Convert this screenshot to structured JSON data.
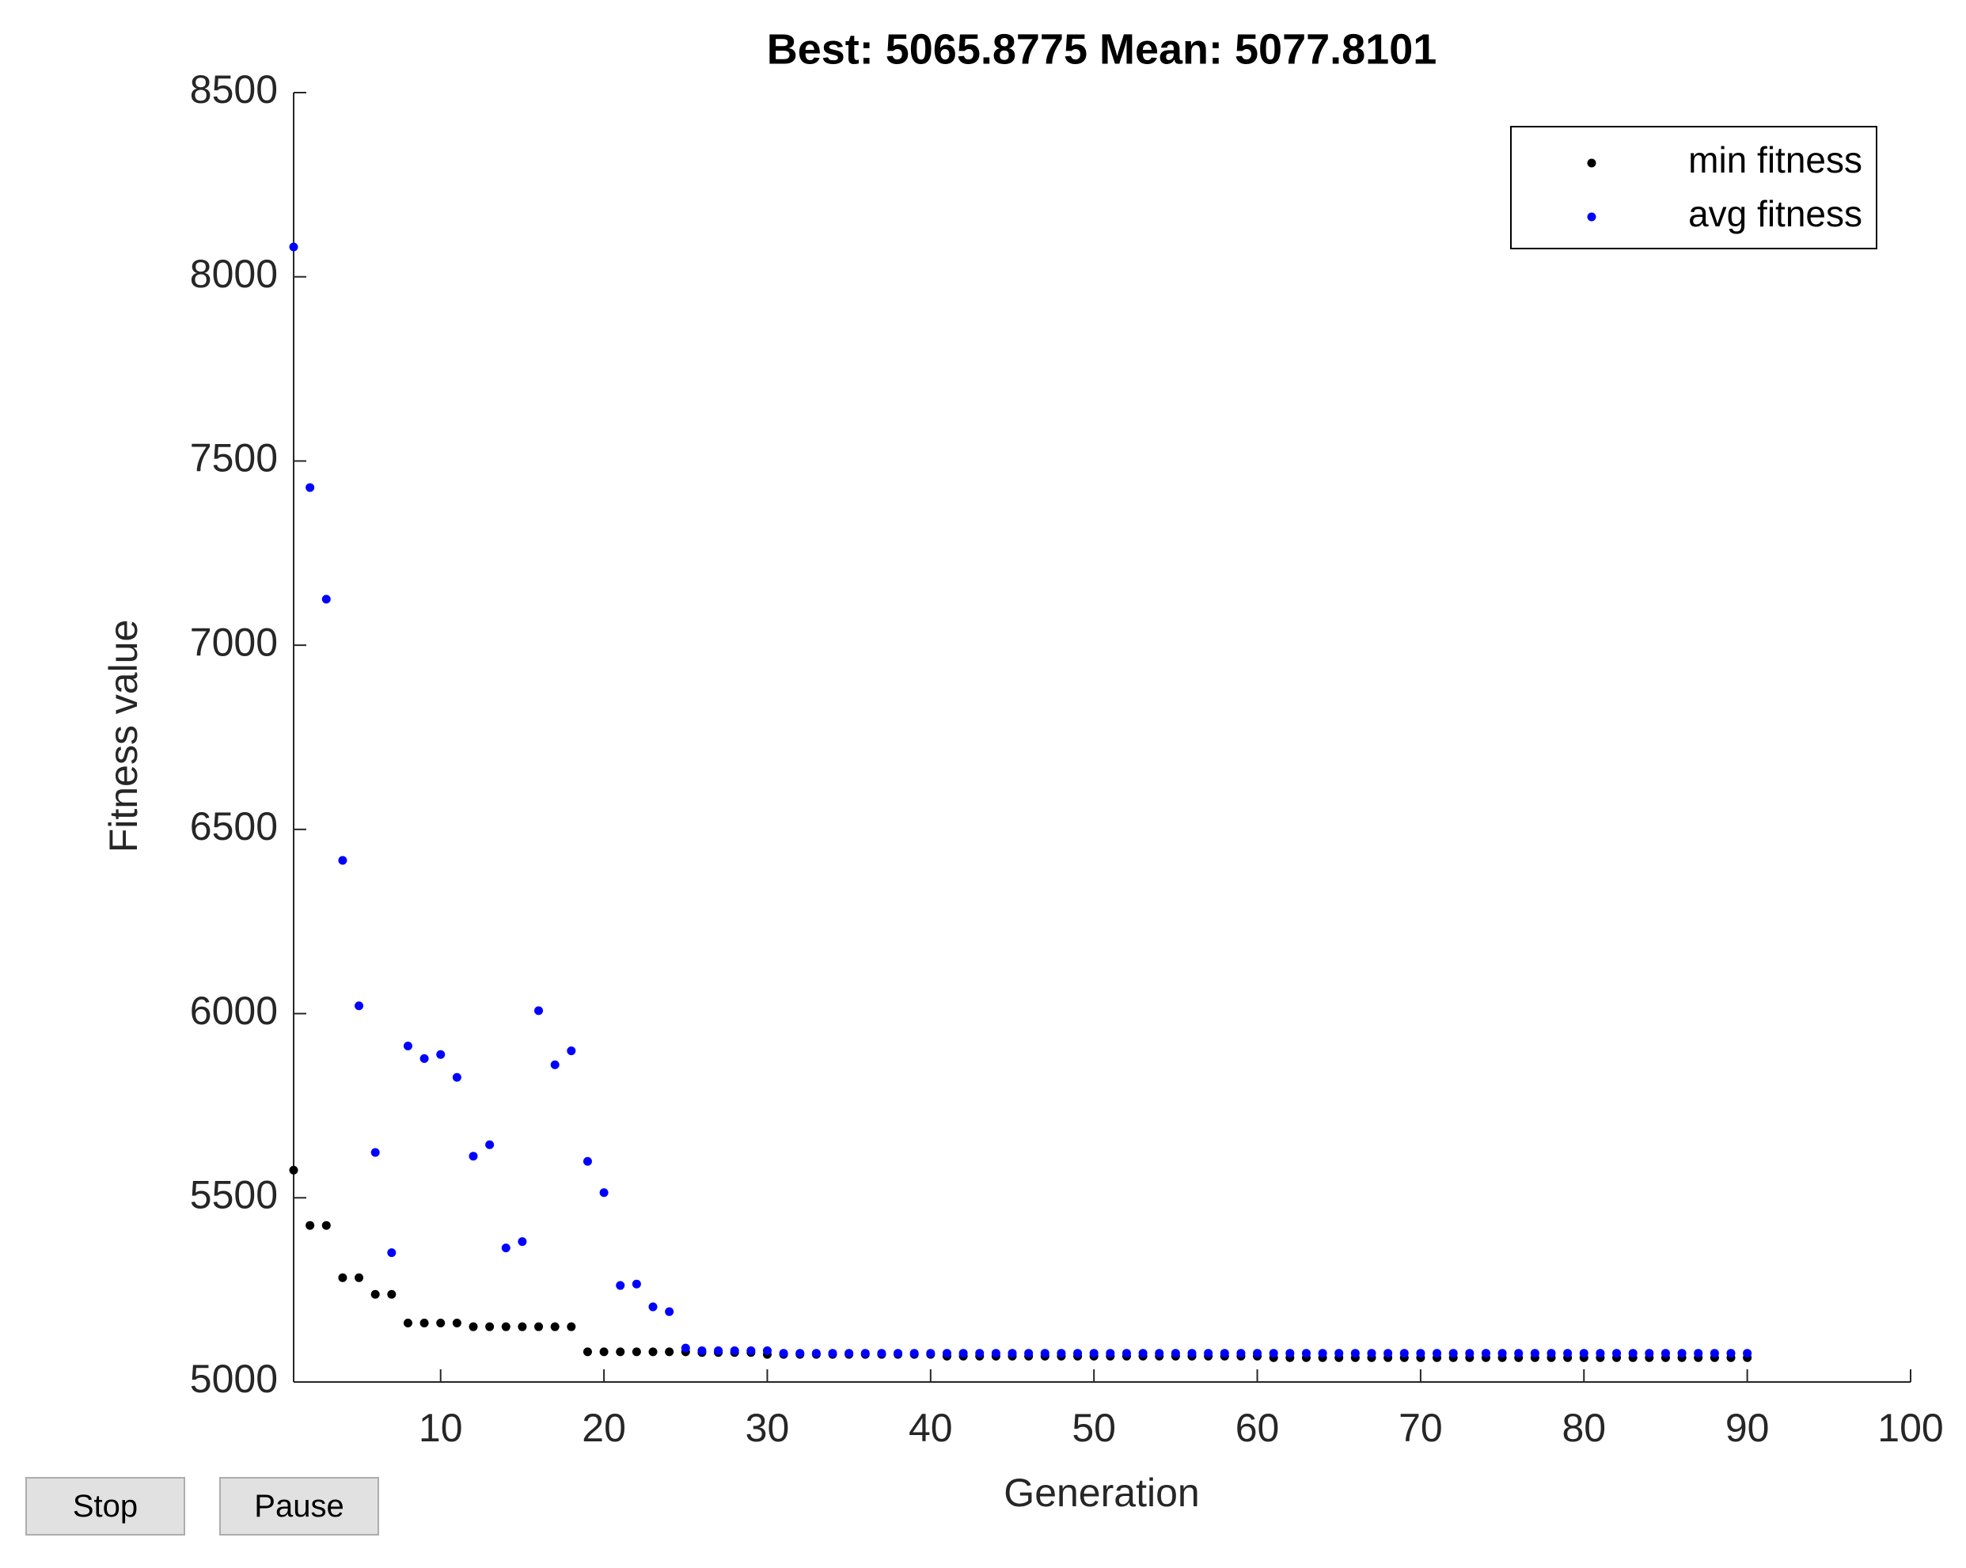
{
  "chart_data": {
    "type": "scatter",
    "title": "Best: 5065.8775 Mean: 5077.8101",
    "x_label": "Generation",
    "y_label": "Fitness value",
    "x": [
      1,
      2,
      3,
      4,
      5,
      6,
      7,
      8,
      9,
      10,
      11,
      12,
      13,
      14,
      15,
      16,
      17,
      18,
      19,
      20,
      21,
      22,
      23,
      24,
      25,
      26,
      27,
      28,
      29,
      30,
      31,
      32,
      33,
      34,
      35,
      36,
      37,
      38,
      39,
      40,
      41,
      42,
      43,
      44,
      45,
      46,
      47,
      48,
      49,
      50,
      51,
      52,
      53,
      54,
      55,
      56,
      57,
      58,
      59,
      60,
      61,
      62,
      63,
      64,
      65,
      66,
      67,
      68,
      69,
      70,
      71,
      72,
      73,
      74,
      75,
      76,
      77,
      78,
      79,
      80,
      81,
      82,
      83,
      84,
      85,
      86,
      87,
      88,
      89,
      90
    ],
    "series": [
      {
        "name": "min fitness",
        "color": "#000000",
        "values": [
          5575,
          5425,
          5425,
          5283,
          5283,
          5238,
          5238,
          5160,
          5160,
          5160,
          5160,
          5150,
          5150,
          5150,
          5150,
          5150,
          5150,
          5150,
          5082,
          5082,
          5082,
          5082,
          5082,
          5082,
          5082,
          5080,
          5080,
          5080,
          5080,
          5075,
          5075,
          5075,
          5075,
          5075,
          5075,
          5075,
          5075,
          5075,
          5075,
          5075,
          5070,
          5070,
          5070,
          5070,
          5070,
          5070,
          5070,
          5070,
          5070,
          5070,
          5070,
          5070,
          5070,
          5070,
          5070,
          5070,
          5070,
          5070,
          5070,
          5070,
          5066,
          5066,
          5066,
          5066,
          5066,
          5066,
          5066,
          5066,
          5066,
          5066,
          5066,
          5066,
          5066,
          5066,
          5066,
          5066,
          5066,
          5066,
          5066,
          5066,
          5066,
          5066,
          5066,
          5066,
          5066,
          5066,
          5066,
          5066,
          5066,
          5066
        ]
      },
      {
        "name": "avg fitness",
        "color": "#0000ff",
        "values": [
          8081,
          7428,
          7125,
          6416,
          6021,
          5623,
          5351,
          5912,
          5878,
          5889,
          5827,
          5613,
          5644,
          5364,
          5381,
          6008,
          5861,
          5899,
          5599,
          5514,
          5262,
          5266,
          5204,
          5191,
          5092,
          5085,
          5085,
          5085,
          5085,
          5085,
          5078,
          5078,
          5078,
          5078,
          5078,
          5078,
          5078,
          5078,
          5078,
          5078,
          5078,
          5078,
          5078,
          5078,
          5078,
          5078,
          5078,
          5078,
          5078,
          5078,
          5078,
          5078,
          5078,
          5078,
          5078,
          5078,
          5078,
          5078,
          5078,
          5078,
          5078,
          5078,
          5078,
          5078,
          5078,
          5078,
          5078,
          5078,
          5078,
          5078,
          5078,
          5078,
          5078,
          5078,
          5078,
          5078,
          5078,
          5078,
          5078,
          5078,
          5078,
          5078,
          5078,
          5078,
          5078,
          5078,
          5078,
          5078,
          5078,
          5078
        ]
      }
    ],
    "xlim": [
      1,
      100
    ],
    "xticks": [
      10,
      20,
      30,
      40,
      50,
      60,
      70,
      80,
      90,
      100
    ],
    "ylim": [
      5000,
      8500
    ],
    "yticks": [
      5000,
      5500,
      6000,
      6500,
      7000,
      7500,
      8000,
      8500
    ],
    "legend": "upper right"
  },
  "buttons": [
    "Stop",
    "Pause"
  ]
}
